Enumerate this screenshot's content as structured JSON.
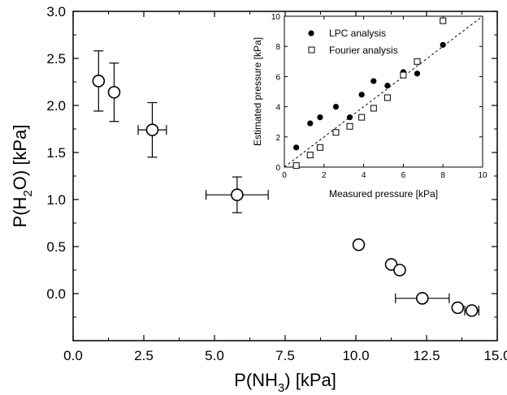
{
  "chart_data": [
    {
      "type": "scatter",
      "title": "",
      "xlabel": "P(NH3) [kPa]",
      "ylabel": "P(H2O) [kPa]",
      "xlabel_parts": {
        "pre": "P(NH",
        "sub": "3",
        "post": ") [kPa]"
      },
      "ylabel_parts": {
        "pre": "P(H",
        "sub": "2",
        "post": "O) [kPa]"
      },
      "xlim": [
        0.0,
        15.0
      ],
      "ylim": [
        -0.5,
        3.0
      ],
      "xticks": [
        0.0,
        2.5,
        5.0,
        7.5,
        10.0,
        12.5,
        15.0
      ],
      "xtick_labels": [
        "0.0",
        "2.5",
        "5.0",
        "7.5",
        "10.0",
        "12.5",
        "15.0"
      ],
      "yticks": [
        0.0,
        0.5,
        1.0,
        1.5,
        2.0,
        2.5,
        3.0
      ],
      "ytick_labels": [
        "0.0",
        "0.5",
        "1.0",
        "1.5",
        "2.0",
        "2.5",
        "3.0"
      ],
      "grid": false,
      "marker": "open-circle",
      "points": [
        {
          "x": 0.9,
          "y": 2.26,
          "xerr": 0,
          "yerr": 0.32
        },
        {
          "x": 1.45,
          "y": 2.14,
          "xerr": 0,
          "yerr": 0.31
        },
        {
          "x": 2.8,
          "y": 1.74,
          "xerr": 0.5,
          "yerr": 0.29
        },
        {
          "x": 5.8,
          "y": 1.05,
          "xerr": 1.1,
          "yerr": 0.19
        },
        {
          "x": 10.1,
          "y": 0.52,
          "xerr": 0,
          "yerr": 0
        },
        {
          "x": 11.25,
          "y": 0.31,
          "xerr": 0,
          "yerr": 0
        },
        {
          "x": 11.55,
          "y": 0.25,
          "xerr": 0,
          "yerr": 0
        },
        {
          "x": 12.35,
          "y": -0.05,
          "xerr": 0.95,
          "yerr": 0
        },
        {
          "x": 13.6,
          "y": -0.15,
          "xerr": 0,
          "yerr": 0
        },
        {
          "x": 14.1,
          "y": -0.18,
          "xerr": 0.25,
          "yerr": 0
        }
      ]
    },
    {
      "type": "scatter",
      "title": "",
      "xlabel": "Measured pressure [kPa]",
      "ylabel": "Estimated pressure [kPa]",
      "xlim": [
        0,
        10
      ],
      "ylim": [
        0,
        10
      ],
      "xticks": [
        0,
        2,
        4,
        6,
        8,
        10
      ],
      "xtick_labels": [
        "0",
        "2",
        "4",
        "6",
        "8",
        "10"
      ],
      "yticks": [
        0,
        2,
        4,
        6,
        8,
        10
      ],
      "ytick_labels": [
        "0",
        "2",
        "4",
        "6",
        "8",
        "10"
      ],
      "grid": false,
      "legend_position": "top-left",
      "reference_line": {
        "style": "dashed",
        "points": [
          [
            0,
            0
          ],
          [
            10,
            10
          ]
        ]
      },
      "series": [
        {
          "name": "LPC analysis",
          "marker": "filled-circle",
          "x": [
            0.6,
            1.3,
            1.8,
            2.6,
            3.3,
            3.9,
            4.5,
            5.2,
            6.0,
            6.7,
            8.0
          ],
          "y": [
            1.3,
            2.9,
            3.3,
            4.0,
            3.3,
            4.8,
            5.7,
            5.4,
            6.3,
            6.2,
            8.1
          ]
        },
        {
          "name": "Fourier analysis",
          "marker": "open-square",
          "x": [
            0.6,
            1.3,
            1.8,
            2.6,
            3.3,
            3.9,
            4.5,
            5.2,
            6.0,
            6.7,
            8.0
          ],
          "y": [
            0.1,
            0.8,
            1.3,
            2.3,
            2.7,
            3.3,
            3.9,
            4.6,
            6.1,
            7.0,
            9.7
          ]
        }
      ]
    }
  ]
}
